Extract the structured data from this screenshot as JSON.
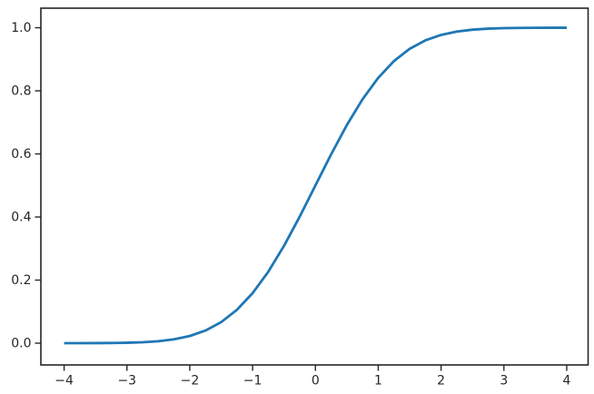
{
  "figure": {
    "background_color": "#ffffff",
    "spine_color": "#262626",
    "tick_color": "#262626",
    "tick_label_color": "#262626"
  },
  "chart_data": {
    "type": "line",
    "title": "",
    "xlabel": "",
    "ylabel": "",
    "grid": false,
    "legend": null,
    "line_color": "#1f77b4",
    "line_width": 2.8,
    "x": [
      -4.0,
      -3.75,
      -3.5,
      -3.25,
      -3.0,
      -2.75,
      -2.5,
      -2.25,
      -2.0,
      -1.75,
      -1.5,
      -1.25,
      -1.0,
      -0.75,
      -0.5,
      -0.25,
      0.0,
      0.25,
      0.5,
      0.75,
      1.0,
      1.25,
      1.5,
      1.75,
      2.0,
      2.25,
      2.5,
      2.75,
      3.0,
      3.25,
      3.5,
      3.75,
      4.0
    ],
    "y": [
      3e-05,
      9e-05,
      0.00023,
      0.00058,
      0.00135,
      0.00298,
      0.00621,
      0.01222,
      0.02275,
      0.04006,
      0.06681,
      0.10565,
      0.15866,
      0.22663,
      0.30854,
      0.40129,
      0.5,
      0.59871,
      0.69146,
      0.77337,
      0.84134,
      0.89435,
      0.93319,
      0.95994,
      0.97725,
      0.98778,
      0.99379,
      0.99702,
      0.99865,
      0.99942,
      0.99977,
      0.99991,
      0.99997
    ],
    "xlim": [
      -4.37,
      4.34
    ],
    "ylim": [
      -0.069,
      1.062
    ],
    "x_ticks": {
      "values": [
        -4,
        -3,
        -2,
        -1,
        0,
        1,
        2,
        3,
        4
      ],
      "labels": [
        "−4",
        "−3",
        "−2",
        "−1",
        "0",
        "1",
        "2",
        "3",
        "4"
      ]
    },
    "y_ticks": {
      "values": [
        0.0,
        0.2,
        0.4,
        0.6,
        0.8,
        1.0
      ],
      "labels": [
        "0.0",
        "0.2",
        "0.4",
        "0.6",
        "0.8",
        "1.0"
      ]
    }
  }
}
